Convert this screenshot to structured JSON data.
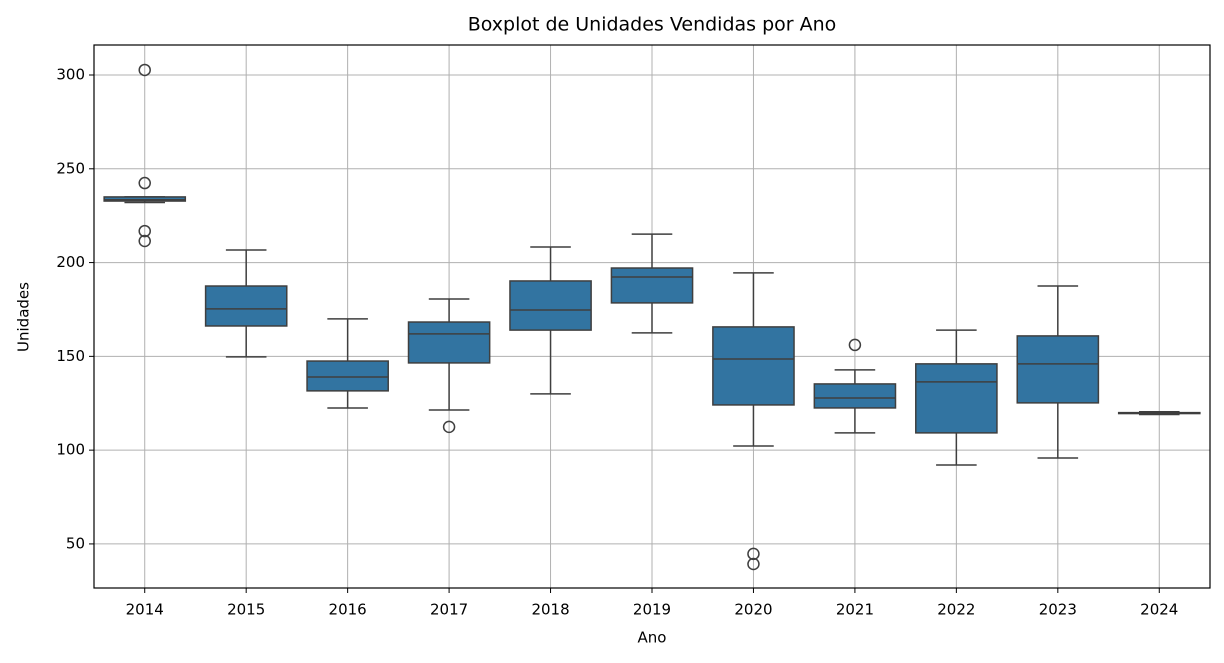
{
  "chart_data": {
    "type": "box",
    "title": "Boxplot de Unidades Vendidas por Ano",
    "x_label": "Ano",
    "y_label": "Unidades",
    "categories": [
      "2014",
      "2015",
      "2016",
      "2017",
      "2018",
      "2019",
      "2020",
      "2021",
      "2022",
      "2023",
      "2024"
    ],
    "boxes": [
      {
        "min": 232,
        "q1": 232.8,
        "median": 233.5,
        "q3": 235,
        "max": 235,
        "outliers": [
          302.7,
          242.4,
          216.8,
          211.5
        ]
      },
      {
        "min": 149.7,
        "q1": 166.2,
        "median": 175.3,
        "q3": 187.5,
        "max": 206.7,
        "outliers": []
      },
      {
        "min": 122.5,
        "q1": 131.6,
        "median": 139,
        "q3": 147.5,
        "max": 170,
        "outliers": []
      },
      {
        "min": 121.4,
        "q1": 146.5,
        "median": 162,
        "q3": 168.3,
        "max": 180.6,
        "outliers": [
          112.4
        ]
      },
      {
        "min": 130,
        "q1": 164,
        "median": 174.7,
        "q3": 190.2,
        "max": 208.3,
        "outliers": []
      },
      {
        "min": 162.5,
        "q1": 178.5,
        "median": 192.3,
        "q3": 197.1,
        "max": 215.2,
        "outliers": []
      },
      {
        "min": 102.2,
        "q1": 124.1,
        "median": 148.6,
        "q3": 165.7,
        "max": 194.5,
        "outliers": [
          44.7,
          39.3
        ]
      },
      {
        "min": 109.2,
        "q1": 122.5,
        "median": 127.8,
        "q3": 135.3,
        "max": 142.8,
        "outliers": [
          156.1
        ]
      },
      {
        "min": 92.1,
        "q1": 109.2,
        "median": 136.4,
        "q3": 146,
        "max": 164,
        "outliers": []
      },
      {
        "min": 95.8,
        "q1": 125.2,
        "median": 146,
        "q3": 160.9,
        "max": 187.5,
        "outliers": []
      },
      {
        "min": 119,
        "q1": 119.5,
        "median": 119.8,
        "q3": 120,
        "max": 120.5,
        "outliers": []
      }
    ],
    "color": "#3274a1",
    "edge_color": "#3f3f3f",
    "ylim": [
      26.5,
      316
    ],
    "yticks": [
      50,
      100,
      150,
      200,
      250,
      300
    ],
    "grid": true
  }
}
